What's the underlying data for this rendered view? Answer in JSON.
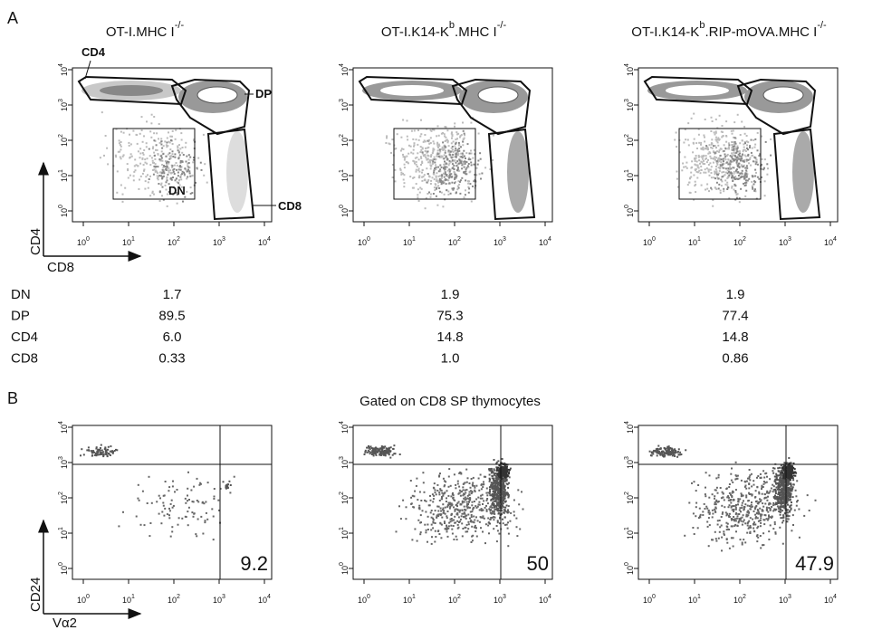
{
  "panel_a": {
    "label": "A",
    "titles": [
      [
        {
          "text": "OT-I.MHC I"
        },
        {
          "sup": "-/-"
        }
      ],
      [
        {
          "text": "OT-I.K14-K"
        },
        {
          "sup": "b"
        },
        {
          "text": ".MHC I"
        },
        {
          "sup": "-/-"
        }
      ],
      [
        {
          "text": "OT-I.K14-K"
        },
        {
          "sup": "b"
        },
        {
          "text": ".RIP-mOVA.MHC I"
        },
        {
          "sup": "-/-"
        }
      ]
    ],
    "gate_labels": {
      "cd4": "CD4",
      "dp": "DP",
      "dn": "DN",
      "cd8": "CD8"
    },
    "axis_x": "CD8",
    "axis_y": "CD4",
    "table": [
      {
        "name": "DN",
        "values": [
          "1.7",
          "1.9",
          "1.9"
        ]
      },
      {
        "name": "DP",
        "values": [
          "89.5",
          "75.3",
          "77.4"
        ]
      },
      {
        "name": "CD4",
        "values": [
          "6.0",
          "14.8",
          "14.8"
        ]
      },
      {
        "name": "CD8",
        "values": [
          "0.33",
          "1.0",
          "0.86"
        ]
      }
    ]
  },
  "panel_b": {
    "label": "B",
    "subtitle": "Gated on CD8 SP thymocytes",
    "axis_x": "Vα2",
    "axis_y": "CD24",
    "quadrant_values": [
      "9.2",
      "50",
      "47.9"
    ]
  },
  "tick_base": "10",
  "tick_exponents": [
    "0",
    "1",
    "2",
    "3",
    "4"
  ]
}
